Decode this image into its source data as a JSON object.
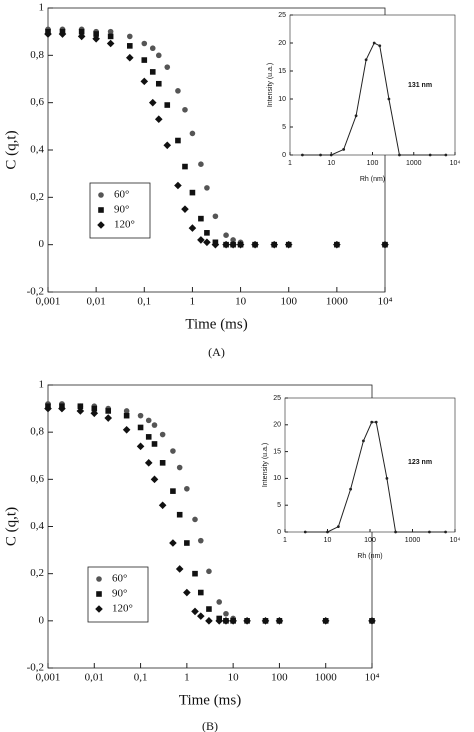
{
  "chart_data": [
    {
      "type": "scatter",
      "caption": "(A)",
      "xlabel": "Time (ms)",
      "ylabel": "C (q,t)",
      "log_x": true,
      "xlim": [
        0.001,
        10000
      ],
      "ylim": [
        -0.2,
        1
      ],
      "xticks": [
        {
          "value": 0.001,
          "label": "0,001"
        },
        {
          "value": 0.01,
          "label": "0,01"
        },
        {
          "value": 0.1,
          "label": "0,1"
        },
        1,
        10,
        100,
        1000,
        {
          "value": 10000,
          "label": "10⁴"
        }
      ],
      "yticks": [
        {
          "value": -0.2,
          "label": "-0,2"
        },
        0,
        {
          "value": 0.2,
          "label": "0,2"
        },
        {
          "value": 0.4,
          "label": "0,4"
        },
        {
          "value": 0.6,
          "label": "0,6"
        },
        {
          "value": 0.8,
          "label": "0,8"
        },
        1
      ],
      "x": [
        0.001,
        0.002,
        0.005,
        0.01,
        0.02,
        0.05,
        0.1,
        0.15,
        0.2,
        0.3,
        0.5,
        0.7,
        1,
        1.5,
        2,
        3,
        5,
        7,
        10,
        20,
        50,
        100,
        1000,
        10000
      ],
      "series": [
        {
          "name": "60°",
          "color": "#555555",
          "marker": "circle",
          "values": [
            0.91,
            0.91,
            0.91,
            0.9,
            0.9,
            0.88,
            0.85,
            0.83,
            0.8,
            0.75,
            0.65,
            0.57,
            0.47,
            0.34,
            0.24,
            0.12,
            0.04,
            0.02,
            0.01,
            0,
            0,
            0,
            0,
            0
          ]
        },
        {
          "name": "90°",
          "color": "#111111",
          "marker": "square",
          "values": [
            0.9,
            0.9,
            0.9,
            0.89,
            0.88,
            0.84,
            0.78,
            0.73,
            0.68,
            0.59,
            0.44,
            0.33,
            0.22,
            0.11,
            0.05,
            0.01,
            0,
            0,
            0,
            0,
            0,
            0,
            0,
            0
          ]
        },
        {
          "name": "120°",
          "color": "#111111",
          "marker": "diamond",
          "values": [
            0.89,
            0.89,
            0.88,
            0.87,
            0.85,
            0.79,
            0.69,
            0.6,
            0.53,
            0.42,
            0.25,
            0.15,
            0.07,
            0.02,
            0.01,
            0,
            0,
            0,
            0,
            0,
            0,
            0,
            0,
            0
          ]
        }
      ]
    },
    {
      "type": "line",
      "xlabel": "Rh (nm)",
      "ylabel": "Intensity (u.a.)",
      "annotation": "131 nm",
      "log_x": true,
      "color": "#222222",
      "xlim": [
        1,
        10000
      ],
      "ylim": [
        0,
        25
      ],
      "xticks": [
        1,
        10,
        100,
        1000,
        {
          "value": 10000,
          "label": "10⁴"
        }
      ],
      "yticks": [
        0,
        5,
        10,
        15,
        20,
        25
      ],
      "x": [
        2,
        5.5,
        10,
        20,
        40,
        70,
        110,
        150,
        250,
        450,
        2500,
        6000
      ],
      "values": [
        0,
        0,
        0,
        1,
        7,
        17,
        20,
        19.5,
        10,
        0,
        0,
        0
      ]
    },
    {
      "type": "scatter",
      "caption": "(B)",
      "xlabel": "Time (ms)",
      "ylabel": "C (q,t)",
      "log_x": true,
      "xlim": [
        0.001,
        10000
      ],
      "ylim": [
        -0.2,
        1
      ],
      "xticks": [
        {
          "value": 0.001,
          "label": "0,001"
        },
        {
          "value": 0.01,
          "label": "0,01"
        },
        {
          "value": 0.1,
          "label": "0,1"
        },
        1,
        10,
        100,
        1000,
        {
          "value": 10000,
          "label": "10⁴"
        }
      ],
      "yticks": [
        {
          "value": -0.2,
          "label": "-0,2"
        },
        0,
        {
          "value": 0.2,
          "label": "0,2"
        },
        {
          "value": 0.4,
          "label": "0,4"
        },
        {
          "value": 0.6,
          "label": "0,6"
        },
        {
          "value": 0.8,
          "label": "0,8"
        },
        1
      ],
      "x": [
        0.001,
        0.002,
        0.005,
        0.01,
        0.02,
        0.05,
        0.1,
        0.15,
        0.2,
        0.3,
        0.5,
        0.7,
        1,
        1.5,
        2,
        3,
        5,
        7,
        10,
        20,
        50,
        100,
        1000,
        10000
      ],
      "series": [
        {
          "name": "60°",
          "color": "#555555",
          "marker": "circle",
          "values": [
            0.92,
            0.92,
            0.91,
            0.91,
            0.9,
            0.89,
            0.87,
            0.85,
            0.83,
            0.79,
            0.72,
            0.65,
            0.56,
            0.43,
            0.34,
            0.21,
            0.08,
            0.03,
            0.01,
            0,
            0,
            0,
            0,
            0
          ]
        },
        {
          "name": "90°",
          "color": "#111111",
          "marker": "square",
          "values": [
            0.91,
            0.91,
            0.91,
            0.9,
            0.89,
            0.87,
            0.82,
            0.78,
            0.75,
            0.67,
            0.55,
            0.45,
            0.33,
            0.2,
            0.12,
            0.05,
            0.01,
            0,
            0,
            0,
            0,
            0,
            0,
            0
          ]
        },
        {
          "name": "120°",
          "color": "#111111",
          "marker": "diamond",
          "values": [
            0.9,
            0.9,
            0.89,
            0.88,
            0.86,
            0.81,
            0.74,
            0.67,
            0.6,
            0.49,
            0.33,
            0.22,
            0.12,
            0.04,
            0.02,
            0,
            0,
            0,
            0,
            0,
            0,
            0,
            0,
            0
          ]
        }
      ]
    },
    {
      "type": "line",
      "xlabel": "Rh (nm)",
      "ylabel": "Intensity (u.a.)",
      "annotation": "123 nm",
      "log_x": true,
      "color": "#222222",
      "xlim": [
        1,
        10000
      ],
      "ylim": [
        0,
        25
      ],
      "xticks": [
        1,
        10,
        100,
        1000,
        {
          "value": 10000,
          "label": "10⁴"
        }
      ],
      "yticks": [
        0,
        5,
        10,
        15,
        20,
        25
      ],
      "x": [
        3,
        10,
        18,
        35,
        70,
        110,
        140,
        250,
        400,
        2500,
        6000
      ],
      "values": [
        0,
        0,
        1,
        8,
        17,
        20.5,
        20.5,
        10,
        0,
        0,
        0
      ]
    }
  ]
}
